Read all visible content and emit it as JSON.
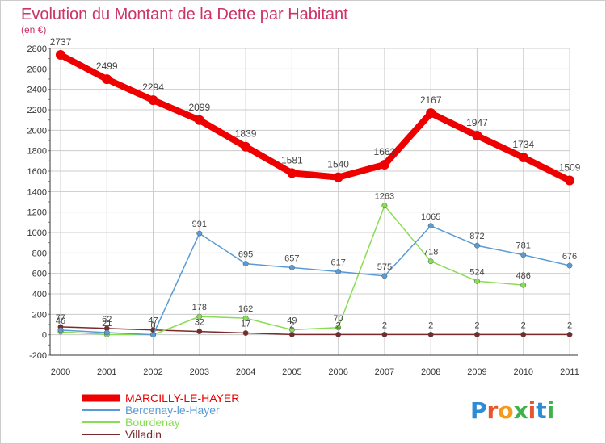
{
  "chart_data": {
    "type": "line",
    "title": "Evolution du Montant de la Dette par Habitant",
    "subtitle": "(en €)",
    "xlabel": "",
    "ylabel": "",
    "x": [
      "2000",
      "2001",
      "2002",
      "2003",
      "2004",
      "2005",
      "2006",
      "2007",
      "2008",
      "2009",
      "2010",
      "2011"
    ],
    "ylim": [
      -200,
      2800
    ],
    "yticks": [
      -200,
      0,
      200,
      400,
      600,
      800,
      1000,
      1200,
      1400,
      1600,
      1800,
      2000,
      2200,
      2400,
      2600,
      2800
    ],
    "grid": true,
    "legend_position": "bottom-left",
    "series": [
      {
        "name": "MARCILLY-LE-HAYER",
        "color": "#ee0000",
        "values": [
          2737,
          2499,
          2294,
          2099,
          1839,
          1581,
          1540,
          1663,
          2167,
          1947,
          1734,
          1509
        ],
        "labels": [
          "2737",
          "2499",
          "2294",
          "2099",
          "1839",
          "1581",
          "1540",
          "1663",
          "2167",
          "1947",
          "1734",
          "1509"
        ]
      },
      {
        "name": "Bercenay-le-Hayer",
        "color": "#5b9bd5",
        "values": [
          46,
          21,
          0,
          991,
          695,
          657,
          617,
          575,
          1065,
          872,
          781,
          676
        ],
        "labels": [
          "46",
          "21",
          "0",
          "991",
          "695",
          "657",
          "617",
          "575",
          "1065",
          "872",
          "781",
          "676"
        ]
      },
      {
        "name": "Bourdenay",
        "color": "#88dd55",
        "values": [
          29,
          2,
          0,
          178,
          162,
          49,
          70,
          1263,
          718,
          524,
          486,
          null
        ],
        "labels": [
          "",
          "",
          "",
          "178",
          "162",
          "49",
          "70",
          "1263",
          "718",
          "524",
          "486",
          ""
        ]
      },
      {
        "name": "Villadin",
        "color": "#7a2a2a",
        "values": [
          77,
          62,
          47,
          32,
          17,
          2,
          2,
          2,
          2,
          2,
          2,
          2
        ],
        "labels": [
          "77",
          "62",
          "47",
          "32",
          "17",
          "2",
          "2",
          "2",
          "2",
          "2",
          "2",
          "2"
        ]
      }
    ]
  },
  "brand": {
    "logo_text": "Proxiti"
  },
  "colors": {
    "title": "#cc3366",
    "axis": "#333333",
    "grid": "#cccccc",
    "label": "#444444"
  }
}
